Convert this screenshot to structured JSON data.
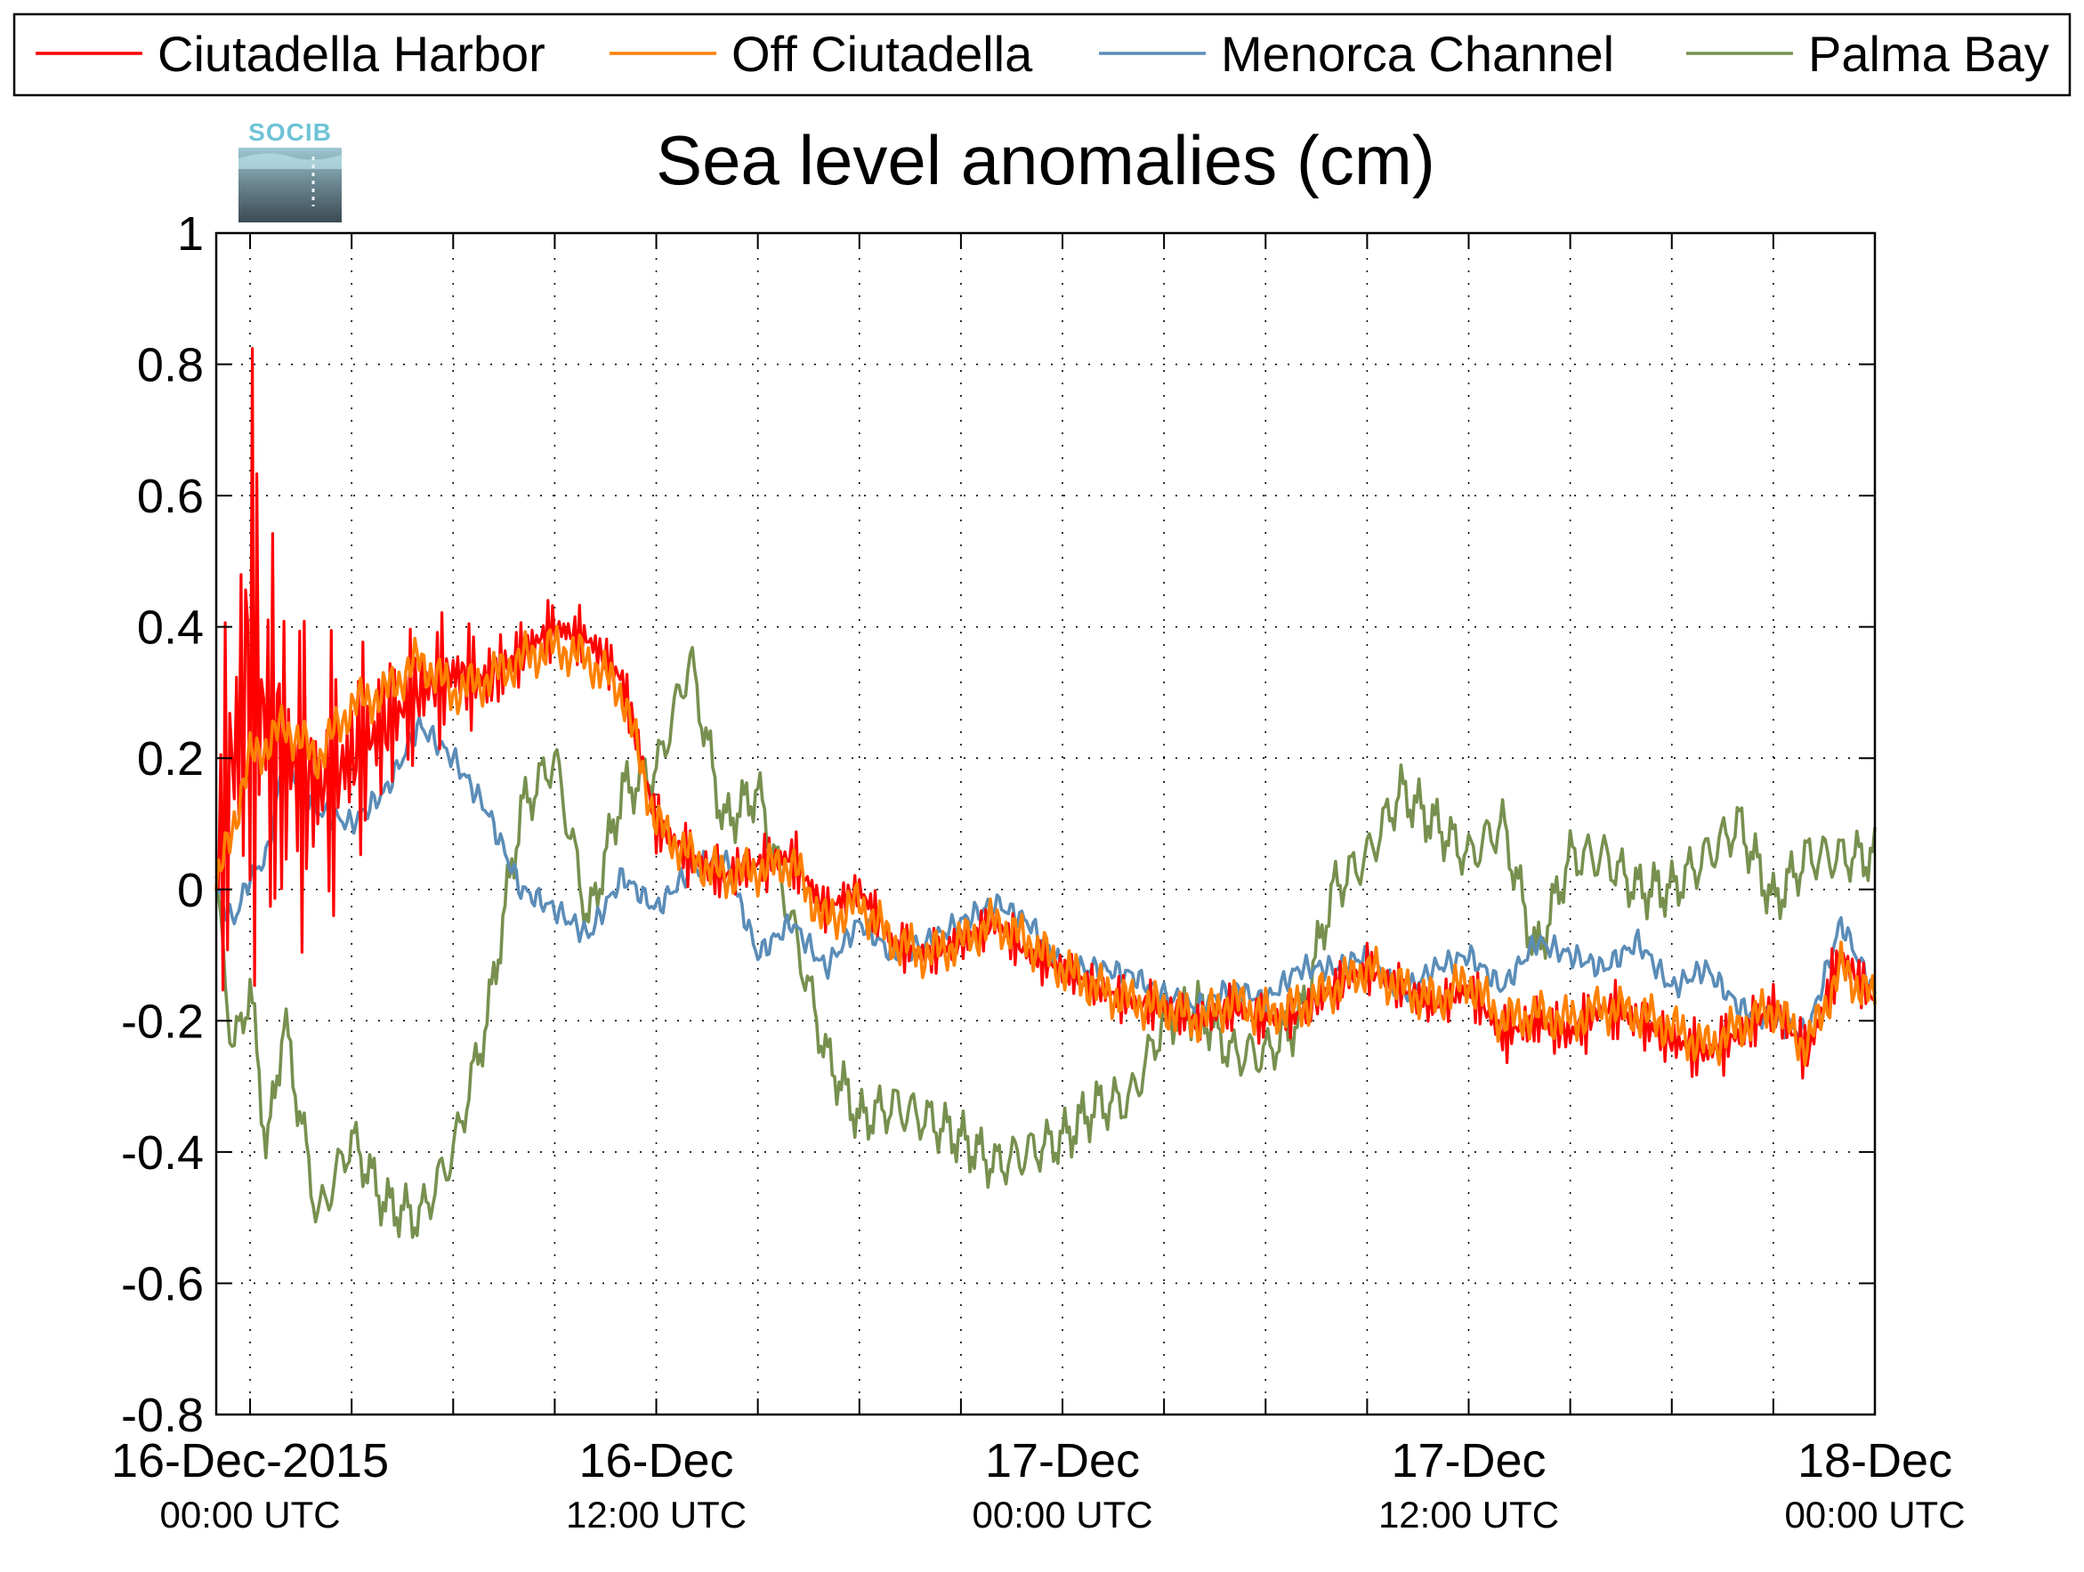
{
  "chart_data": {
    "type": "line",
    "title": "Sea level anomalies (cm)",
    "logo": {
      "text": "SOCIB"
    },
    "xlabel": "",
    "ylabel": "",
    "ylim": [
      -0.8,
      1
    ],
    "yticks": [
      -0.8,
      -0.6,
      -0.4,
      -0.2,
      0,
      0.2,
      0.4,
      0.6,
      0.8,
      1
    ],
    "ytick_labels": [
      "-0.8",
      "-0.6",
      "-0.4",
      "-0.2",
      "0",
      "0.2",
      "0.4",
      "0.6",
      "0.8",
      "1"
    ],
    "xlim": [
      "2015-12-15T23:00",
      "2015-12-18T00:00"
    ],
    "x_major_ticks": [
      {
        "t": "2015-12-16T00:00",
        "label": "16-Dec-2015",
        "sub": "00:00 UTC"
      },
      {
        "t": "2015-12-16T12:00",
        "label": "16-Dec",
        "sub": "12:00 UTC"
      },
      {
        "t": "2015-12-17T00:00",
        "label": "17-Dec",
        "sub": "00:00 UTC"
      },
      {
        "t": "2015-12-17T12:00",
        "label": "17-Dec",
        "sub": "12:00 UTC"
      },
      {
        "t": "2015-12-18T00:00",
        "label": "18-Dec",
        "sub": "00:00 UTC"
      }
    ],
    "x_minor_ticks": [
      "2015-12-16T03:00",
      "2015-12-16T06:00",
      "2015-12-16T09:00",
      "2015-12-16T15:00",
      "2015-12-16T18:00",
      "2015-12-16T21:00",
      "2015-12-17T03:00",
      "2015-12-17T06:00",
      "2015-12-17T09:00",
      "2015-12-17T15:00",
      "2015-12-17T18:00",
      "2015-12-17T21:00"
    ],
    "grid": true,
    "legend": "top",
    "series": [
      {
        "name": "Ciutadella Harbor",
        "color": "#ff0000",
        "x": [
          "2015-12-15T23:00",
          "2015-12-15T23:30",
          "2015-12-16T00:00",
          "2015-12-16T00:30",
          "2015-12-16T01:00",
          "2015-12-16T02:00",
          "2015-12-16T03:00",
          "2015-12-16T04:00",
          "2015-12-16T05:00",
          "2015-12-16T06:00",
          "2015-12-16T07:00",
          "2015-12-16T08:00",
          "2015-12-16T09:00",
          "2015-12-16T10:00",
          "2015-12-16T11:00",
          "2015-12-16T12:00",
          "2015-12-16T13:00",
          "2015-12-16T14:00",
          "2015-12-16T15:00",
          "2015-12-16T16:00",
          "2015-12-16T17:00",
          "2015-12-16T18:00",
          "2015-12-16T19:00",
          "2015-12-16T20:00",
          "2015-12-16T21:00",
          "2015-12-16T22:00",
          "2015-12-16T23:00",
          "2015-12-17T00:00",
          "2015-12-17T01:00",
          "2015-12-17T02:00",
          "2015-12-17T03:00",
          "2015-12-17T04:00",
          "2015-12-17T05:00",
          "2015-12-17T06:00",
          "2015-12-17T07:00",
          "2015-12-17T08:00",
          "2015-12-17T09:00",
          "2015-12-17T10:00",
          "2015-12-17T11:00",
          "2015-12-17T12:00",
          "2015-12-17T13:00",
          "2015-12-17T14:00",
          "2015-12-17T15:00",
          "2015-12-17T16:00",
          "2015-12-17T17:00",
          "2015-12-17T18:00",
          "2015-12-17T19:00",
          "2015-12-17T20:00",
          "2015-12-17T21:00",
          "2015-12-17T22:00",
          "2015-12-17T23:00",
          "2015-12-18T00:00"
        ],
        "y": [
          0.02,
          0.2,
          0.35,
          0.25,
          0.2,
          0.15,
          0.2,
          0.25,
          0.3,
          0.33,
          0.32,
          0.36,
          0.4,
          0.38,
          0.32,
          0.1,
          0.05,
          0.02,
          0.04,
          0.05,
          -0.03,
          0.0,
          -0.08,
          -0.1,
          -0.08,
          -0.05,
          -0.1,
          -0.12,
          -0.15,
          -0.17,
          -0.18,
          -0.2,
          -0.18,
          -0.2,
          -0.19,
          -0.15,
          -0.12,
          -0.15,
          -0.18,
          -0.15,
          -0.22,
          -0.2,
          -0.22,
          -0.18,
          -0.2,
          -0.23,
          -0.25,
          -0.22,
          -0.18,
          -0.25,
          -0.1,
          -0.17
        ],
        "oscillation_envelope": [
          0.05,
          0.55,
          0.6,
          0.5,
          0.35,
          0.25,
          0.2,
          0.15,
          0.12,
          0.1,
          0.08,
          0.06,
          0.05,
          0.05,
          0.05,
          0.05,
          0.05,
          0.05,
          0.05,
          0.05,
          0.04,
          0.04,
          0.04,
          0.04,
          0.04,
          0.04,
          0.04,
          0.04,
          0.04,
          0.04,
          0.04,
          0.04,
          0.04,
          0.04,
          0.04,
          0.04,
          0.04,
          0.04,
          0.04,
          0.04,
          0.05,
          0.05,
          0.05,
          0.05,
          0.05,
          0.05,
          0.05,
          0.05,
          0.05,
          0.05,
          0.05,
          0.04
        ]
      },
      {
        "name": "Off Ciutadella",
        "color": "#ff8000",
        "x": [
          "2015-12-15T23:00",
          "2015-12-15T23:30",
          "2015-12-16T00:00",
          "2015-12-16T00:30",
          "2015-12-16T01:00",
          "2015-12-16T02:00",
          "2015-12-16T03:00",
          "2015-12-16T04:00",
          "2015-12-16T05:00",
          "2015-12-16T06:00",
          "2015-12-16T07:00",
          "2015-12-16T08:00",
          "2015-12-16T09:00",
          "2015-12-16T10:00",
          "2015-12-16T11:00",
          "2015-12-16T12:00",
          "2015-12-16T13:00",
          "2015-12-16T14:00",
          "2015-12-16T15:00",
          "2015-12-16T16:00",
          "2015-12-16T17:00",
          "2015-12-16T18:00",
          "2015-12-16T19:00",
          "2015-12-16T20:00",
          "2015-12-16T21:00",
          "2015-12-16T22:00",
          "2015-12-16T23:00",
          "2015-12-17T00:00",
          "2015-12-17T01:00",
          "2015-12-17T02:00",
          "2015-12-17T03:00",
          "2015-12-17T04:00",
          "2015-12-17T05:00",
          "2015-12-17T06:00",
          "2015-12-17T07:00",
          "2015-12-17T08:00",
          "2015-12-17T09:00",
          "2015-12-17T10:00",
          "2015-12-17T11:00",
          "2015-12-17T12:00",
          "2015-12-17T13:00",
          "2015-12-17T14:00",
          "2015-12-17T15:00",
          "2015-12-17T16:00",
          "2015-12-17T17:00",
          "2015-12-17T18:00",
          "2015-12-17T19:00",
          "2015-12-17T20:00",
          "2015-12-17T21:00",
          "2015-12-17T22:00",
          "2015-12-17T23:00",
          "2015-12-18T00:00"
        ],
        "y": [
          0.0,
          0.1,
          0.2,
          0.22,
          0.25,
          0.2,
          0.28,
          0.3,
          0.35,
          0.3,
          0.32,
          0.35,
          0.37,
          0.35,
          0.3,
          0.1,
          0.05,
          0.02,
          0.03,
          0.04,
          -0.05,
          -0.02,
          -0.08,
          -0.1,
          -0.08,
          -0.05,
          -0.08,
          -0.12,
          -0.15,
          -0.17,
          -0.18,
          -0.2,
          -0.17,
          -0.19,
          -0.18,
          -0.15,
          -0.12,
          -0.15,
          -0.17,
          -0.14,
          -0.2,
          -0.19,
          -0.2,
          -0.18,
          -0.19,
          -0.21,
          -0.24,
          -0.21,
          -0.18,
          -0.24,
          -0.12,
          -0.17
        ]
      },
      {
        "name": "Menorca Channel",
        "color": "#5b8db8",
        "x": [
          "2015-12-15T23:00",
          "2015-12-15T23:30",
          "2015-12-16T00:00",
          "2015-12-16T00:30",
          "2015-12-16T01:00",
          "2015-12-16T02:00",
          "2015-12-16T03:00",
          "2015-12-16T04:00",
          "2015-12-16T05:00",
          "2015-12-16T06:00",
          "2015-12-16T07:00",
          "2015-12-16T08:00",
          "2015-12-16T09:00",
          "2015-12-16T10:00",
          "2015-12-16T11:00",
          "2015-12-16T12:00",
          "2015-12-16T13:00",
          "2015-12-16T14:00",
          "2015-12-16T15:00",
          "2015-12-16T16:00",
          "2015-12-16T17:00",
          "2015-12-16T18:00",
          "2015-12-16T19:00",
          "2015-12-16T20:00",
          "2015-12-16T21:00",
          "2015-12-16T22:00",
          "2015-12-16T23:00",
          "2015-12-17T00:00",
          "2015-12-17T01:00",
          "2015-12-17T02:00",
          "2015-12-17T03:00",
          "2015-12-17T04:00",
          "2015-12-17T05:00",
          "2015-12-17T06:00",
          "2015-12-17T07:00",
          "2015-12-17T08:00",
          "2015-12-17T09:00",
          "2015-12-17T10:00",
          "2015-12-17T11:00",
          "2015-12-17T12:00",
          "2015-12-17T13:00",
          "2015-12-17T14:00",
          "2015-12-17T15:00",
          "2015-12-17T16:00",
          "2015-12-17T17:00",
          "2015-12-17T18:00",
          "2015-12-17T19:00",
          "2015-12-17T20:00",
          "2015-12-17T21:00",
          "2015-12-17T22:00",
          "2015-12-17T23:00",
          "2015-12-18T00:00"
        ],
        "y": [
          0.0,
          -0.05,
          0.02,
          0.05,
          0.2,
          0.12,
          0.1,
          0.15,
          0.25,
          0.2,
          0.12,
          0.0,
          -0.03,
          -0.07,
          0.02,
          -0.03,
          0.03,
          0.05,
          -0.1,
          -0.05,
          -0.12,
          -0.05,
          -0.1,
          -0.08,
          -0.05,
          -0.02,
          -0.05,
          -0.12,
          -0.12,
          -0.13,
          -0.16,
          -0.18,
          -0.15,
          -0.17,
          -0.12,
          -0.12,
          -0.1,
          -0.16,
          -0.12,
          -0.1,
          -0.15,
          -0.08,
          -0.1,
          -0.12,
          -0.08,
          -0.15,
          -0.12,
          -0.18,
          -0.2,
          -0.22,
          -0.05,
          -0.16
        ]
      },
      {
        "name": "Palma Bay",
        "color": "#77904f",
        "x": [
          "2015-12-15T23:00",
          "2015-12-15T23:30",
          "2015-12-16T00:00",
          "2015-12-16T00:30",
          "2015-12-16T01:00",
          "2015-12-16T02:00",
          "2015-12-16T03:00",
          "2015-12-16T04:00",
          "2015-12-16T05:00",
          "2015-12-16T06:00",
          "2015-12-16T07:00",
          "2015-12-16T08:00",
          "2015-12-16T09:00",
          "2015-12-16T10:00",
          "2015-12-16T11:00",
          "2015-12-16T12:00",
          "2015-12-16T13:00",
          "2015-12-16T14:00",
          "2015-12-16T15:00",
          "2015-12-16T16:00",
          "2015-12-16T17:00",
          "2015-12-16T18:00",
          "2015-12-16T19:00",
          "2015-12-16T20:00",
          "2015-12-16T21:00",
          "2015-12-16T22:00",
          "2015-12-16T23:00",
          "2015-12-17T00:00",
          "2015-12-17T01:00",
          "2015-12-17T02:00",
          "2015-12-17T03:00",
          "2015-12-17T04:00",
          "2015-12-17T05:00",
          "2015-12-17T06:00",
          "2015-12-17T07:00",
          "2015-12-17T08:00",
          "2015-12-17T09:00",
          "2015-12-17T10:00",
          "2015-12-17T11:00",
          "2015-12-17T12:00",
          "2015-12-17T13:00",
          "2015-12-17T14:00",
          "2015-12-17T15:00",
          "2015-12-17T16:00",
          "2015-12-17T17:00",
          "2015-12-17T18:00",
          "2015-12-17T19:00",
          "2015-12-17T20:00",
          "2015-12-17T21:00",
          "2015-12-17T22:00",
          "2015-12-17T23:00",
          "2015-12-18T00:00"
        ],
        "y": [
          0.0,
          -0.25,
          -0.15,
          -0.4,
          -0.2,
          -0.5,
          -0.38,
          -0.48,
          -0.5,
          -0.4,
          -0.2,
          0.12,
          0.2,
          -0.05,
          0.15,
          0.18,
          0.35,
          0.1,
          0.15,
          -0.05,
          -0.25,
          -0.35,
          -0.33,
          -0.35,
          -0.38,
          -0.42,
          -0.4,
          -0.38,
          -0.33,
          -0.32,
          -0.2,
          -0.18,
          -0.25,
          -0.25,
          -0.2,
          0.0,
          0.05,
          0.15,
          0.1,
          0.05,
          0.1,
          -0.1,
          0.05,
          0.05,
          0.0,
          0.0,
          0.05,
          0.1,
          -0.02,
          0.05,
          0.05,
          0.05
        ]
      }
    ]
  }
}
